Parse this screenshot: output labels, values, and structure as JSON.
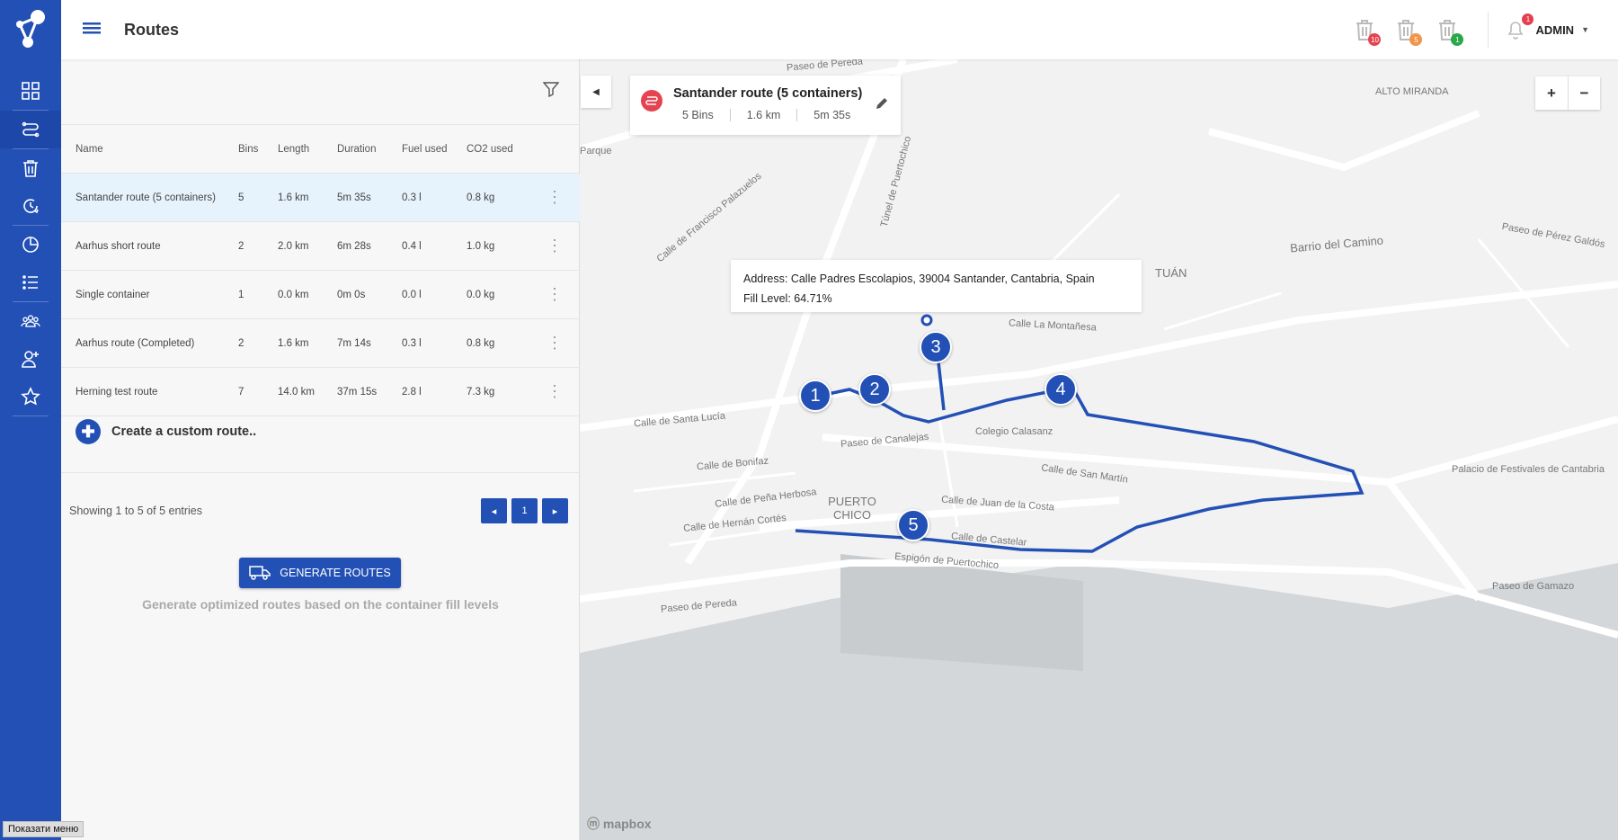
{
  "header": {
    "title": "Routes",
    "admin_label": "ADMIN",
    "notification_count": "1",
    "bins": [
      {
        "count": "10",
        "color": "#e5434f"
      },
      {
        "count": "5",
        "color": "#f0954a"
      },
      {
        "count": "1",
        "color": "#2aa84a"
      }
    ]
  },
  "sidebar": {
    "items": [
      "dashboard-icon",
      "routes-icon",
      "bin-icon",
      "history-icon",
      "chart-icon",
      "list-icon",
      "team-icon",
      "add-user-icon",
      "star-icon"
    ],
    "active": "routes-icon"
  },
  "table": {
    "columns": [
      "Name",
      "Bins",
      "Length",
      "Duration",
      "Fuel used",
      "CO2 used"
    ],
    "rows": [
      [
        "Santander route (5 containers)",
        "5",
        "1.6 km",
        "5m 35s",
        "0.3 l",
        "0.8 kg"
      ],
      [
        "Aarhus short route",
        "2",
        "2.0 km",
        "6m 28s",
        "0.4 l",
        "1.0 kg"
      ],
      [
        "Single container",
        "1",
        "0.0 km",
        "0m 0s",
        "0.0 l",
        "0.0 kg"
      ],
      [
        "Aarhus route (Completed)",
        "2",
        "1.6 km",
        "7m 14s",
        "0.3 l",
        "0.8 kg"
      ],
      [
        "Herning test route",
        "7",
        "14.0 km",
        "37m 15s",
        "2.8 l",
        "7.3 kg"
      ]
    ]
  },
  "create_label": "Create a custom route..",
  "pagination": {
    "info": "Showing 1 to 5 of 5 entries",
    "page": "1",
    "prev": "◂",
    "next": "▸"
  },
  "generate": {
    "button": "GENERATE ROUTES",
    "hint": "Generate optimized routes based on the container fill levels"
  },
  "map": {
    "route_card": {
      "name": "Santander route (5 containers)",
      "bins": "5 Bins",
      "length": "1.6 km",
      "duration": "5m 35s"
    },
    "tooltip": {
      "address_label": "Address:",
      "address": "Calle Padres Escolapios, 39004 Santander, Cantabria, Spain",
      "fill_label": "Fill Level:",
      "fill": "64.71%"
    },
    "markers": [
      "1",
      "2",
      "3",
      "4",
      "5"
    ],
    "route_color": "#2350b5",
    "zoom_in": "+",
    "zoom_out": "−",
    "attribution": "mapbox",
    "labels": [
      "Paseo de Pereda",
      "Calle de Santa Lucía",
      "Calle de Bonifaz",
      "Calle de Peña Herbosa",
      "Calle de Hernán Cortés",
      "PUERTO CHICO",
      "Calle de Castelar",
      "Calle de Juan de la Costa",
      "Calle de San Martín",
      "Colegio Calasanz",
      "Calle La Montañesa",
      "Barrio del Camino",
      "ALTO MIRANDA",
      "Paseo de Pérez Galdós",
      "Palacio de Festivales de Cantabria",
      "Espigón de Puertochico",
      "Túnel de Puertochico",
      "Calle de Francisco Palazuelos",
      "Paseo de Gamazo",
      "TUÁN",
      "Paseo de Pereda",
      "Paseo de Canalejas",
      "Parque"
    ]
  },
  "show_menu": "Показати меню"
}
